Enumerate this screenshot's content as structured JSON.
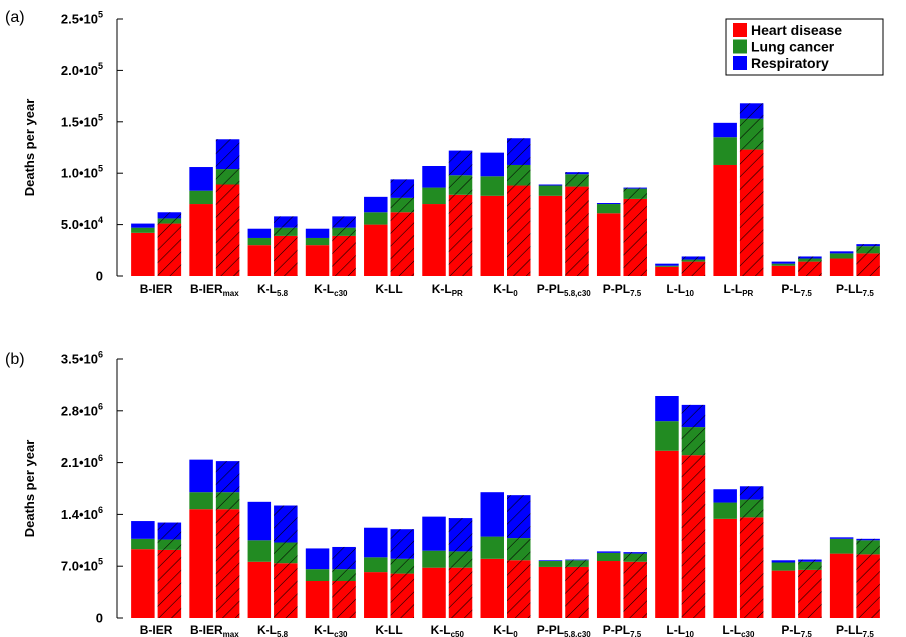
{
  "legend": {
    "items": [
      {
        "label": "Heart disease",
        "color": "#ff0000"
      },
      {
        "label": "Lung cancer",
        "color": "#228b22"
      },
      {
        "label": "Respiratory",
        "color": "#0000ff"
      }
    ],
    "placement": "top-right"
  },
  "chart_data": [
    {
      "type": "bar",
      "stacked": true,
      "panel_label": "(a)",
      "ylabel": "Deaths per year",
      "ylim": [
        0,
        250000
      ],
      "yticks": [
        {
          "value": 0,
          "mant": "0",
          "exp": ""
        },
        {
          "value": 50000,
          "mant": "5.0•10",
          "exp": "4"
        },
        {
          "value": 100000,
          "mant": "1.0•10",
          "exp": "5"
        },
        {
          "value": 150000,
          "mant": "1.5•10",
          "exp": "5"
        },
        {
          "value": 200000,
          "mant": "2.0•10",
          "exp": "5"
        },
        {
          "value": 250000,
          "mant": "2.5•10",
          "exp": "5"
        }
      ],
      "categories": [
        {
          "base": "B-IER",
          "sub": ""
        },
        {
          "base": "B-IER",
          "sub": "max"
        },
        {
          "base": "K-L",
          "sub": "5.8"
        },
        {
          "base": "K-L",
          "sub": "c30"
        },
        {
          "base": "K-LL",
          "sub": ""
        },
        {
          "base": "K-L",
          "sub": "PR"
        },
        {
          "base": "K-L",
          "sub": "0"
        },
        {
          "base": "P-PL",
          "sub": "5.8,c30"
        },
        {
          "base": "P-PL",
          "sub": "7.5"
        },
        {
          "base": "L-L",
          "sub": "10"
        },
        {
          "base": "L-L",
          "sub": "PR"
        },
        {
          "base": "P-L",
          "sub": "7.5"
        },
        {
          "base": "P-LL",
          "sub": "7.5"
        }
      ],
      "bar_variants": [
        "solid",
        "hatched"
      ],
      "series": [
        {
          "name": "Heart disease",
          "solid": [
            42000,
            70000,
            30000,
            30000,
            50000,
            70000,
            78000,
            78000,
            61000,
            9000,
            108000,
            10000,
            17000
          ],
          "hatched": [
            51000,
            89000,
            39000,
            39000,
            62000,
            79000,
            88000,
            87000,
            75000,
            14000,
            123000,
            14000,
            22000
          ]
        },
        {
          "name": "Lung cancer",
          "solid": [
            5000,
            13000,
            7000,
            7000,
            12000,
            16000,
            19000,
            10000,
            9000,
            1000,
            27000,
            2000,
            5000
          ],
          "hatched": [
            5000,
            15000,
            8000,
            8000,
            14000,
            19000,
            20000,
            12000,
            10000,
            2000,
            30000,
            3000,
            7000
          ]
        },
        {
          "name": "Respiratory",
          "solid": [
            4000,
            23000,
            9000,
            9000,
            15000,
            21000,
            23000,
            1000,
            1000,
            2000,
            14000,
            2000,
            2000
          ],
          "hatched": [
            6000,
            29000,
            11000,
            11000,
            18000,
            24000,
            26000,
            2000,
            1000,
            3000,
            15000,
            2000,
            2000
          ]
        }
      ]
    },
    {
      "type": "bar",
      "stacked": true,
      "panel_label": "(b)",
      "ylabel": "Deaths per year",
      "ylim": [
        0,
        3500000
      ],
      "yticks": [
        {
          "value": 0,
          "mant": "0",
          "exp": ""
        },
        {
          "value": 700000,
          "mant": "7.0•10",
          "exp": "5"
        },
        {
          "value": 1400000,
          "mant": "1.4•10",
          "exp": "6"
        },
        {
          "value": 2100000,
          "mant": "2.1•10",
          "exp": "6"
        },
        {
          "value": 2800000,
          "mant": "2.8•10",
          "exp": "6"
        },
        {
          "value": 3500000,
          "mant": "3.5•10",
          "exp": "6"
        }
      ],
      "categories": [
        {
          "base": "B-IER",
          "sub": ""
        },
        {
          "base": "B-IER",
          "sub": "max"
        },
        {
          "base": "K-L",
          "sub": "5.8"
        },
        {
          "base": "K-L",
          "sub": "c30"
        },
        {
          "base": "K-LL",
          "sub": ""
        },
        {
          "base": "K-L",
          "sub": "c50"
        },
        {
          "base": "K-L",
          "sub": "0"
        },
        {
          "base": "P-PL",
          "sub": "5.8,c30"
        },
        {
          "base": "P-PL",
          "sub": "7.5"
        },
        {
          "base": "L-L",
          "sub": "10"
        },
        {
          "base": "L-L",
          "sub": "c30"
        },
        {
          "base": "P-L",
          "sub": "7.5"
        },
        {
          "base": "P-LL",
          "sub": "7.5"
        }
      ],
      "bar_variants": [
        "solid",
        "hatched"
      ],
      "series": [
        {
          "name": "Heart disease",
          "solid": [
            930000,
            1470000,
            760000,
            500000,
            620000,
            680000,
            800000,
            690000,
            770000,
            2260000,
            1340000,
            640000,
            870000
          ],
          "hatched": [
            920000,
            1470000,
            740000,
            500000,
            600000,
            680000,
            780000,
            690000,
            760000,
            2200000,
            1360000,
            650000,
            860000
          ]
        },
        {
          "name": "Lung cancer",
          "solid": [
            140000,
            230000,
            290000,
            160000,
            200000,
            230000,
            300000,
            80000,
            110000,
            400000,
            220000,
            110000,
            200000
          ],
          "hatched": [
            140000,
            230000,
            280000,
            160000,
            200000,
            220000,
            300000,
            90000,
            110000,
            380000,
            240000,
            110000,
            190000
          ]
        },
        {
          "name": "Respiratory",
          "solid": [
            240000,
            440000,
            520000,
            280000,
            400000,
            460000,
            600000,
            10000,
            20000,
            340000,
            180000,
            30000,
            20000
          ],
          "hatched": [
            230000,
            420000,
            500000,
            300000,
            400000,
            450000,
            580000,
            10000,
            20000,
            300000,
            180000,
            30000,
            20000
          ]
        }
      ]
    }
  ]
}
